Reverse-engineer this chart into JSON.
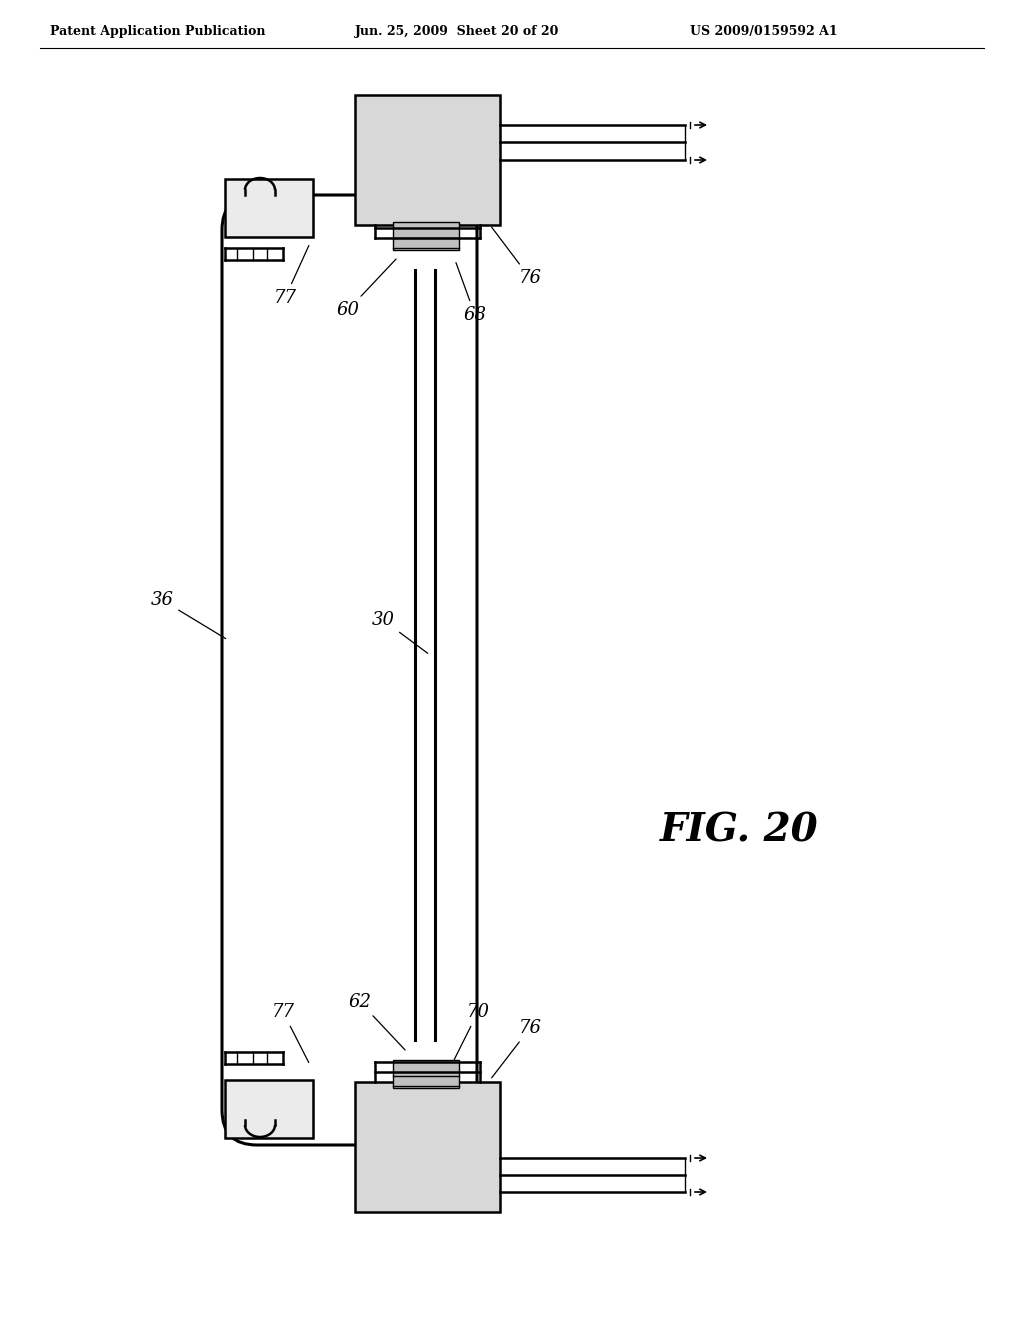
{
  "title_line1": "Patent Application Publication",
  "title_line2": "Jun. 25, 2009  Sheet 20 of 20",
  "title_line3": "US 2009/0159592 A1",
  "fig_label": "FIG. 20",
  "background": "#ffffff",
  "line_color": "#000000"
}
